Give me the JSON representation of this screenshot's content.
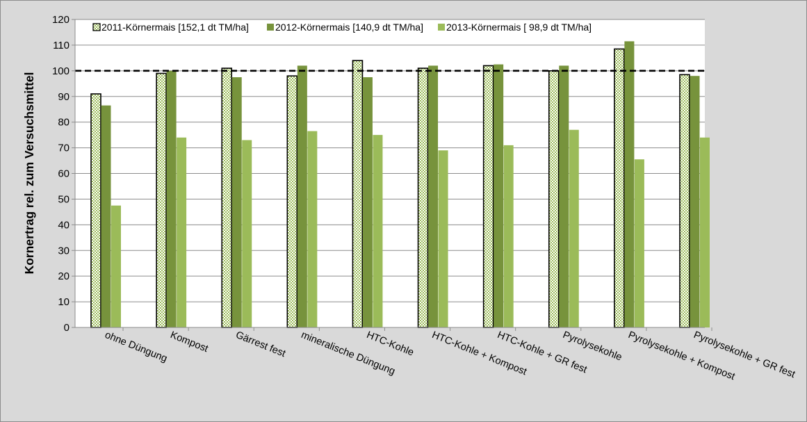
{
  "chart_data": {
    "type": "bar",
    "title": "",
    "xlabel": "",
    "ylabel": "Kornertrag rel. zum Versuchsmittel",
    "ylim": [
      0,
      120
    ],
    "ytick_step": 10,
    "ytick_labels": [
      "0",
      "10",
      "20",
      "30",
      "40",
      "50",
      "60",
      "70",
      "80",
      "90",
      "100",
      "110",
      "120"
    ],
    "grid": true,
    "legend_position": "top",
    "reference_line": {
      "value": 100,
      "style": "dashed",
      "color": "#000000"
    },
    "categories": [
      "ohne Düngung",
      "Kompost",
      "Gärrest fest",
      "mineralische Düngung",
      "HTC-Kohle",
      "HTC-Kohle + Kompost",
      "HTC-Kohle + GR fest",
      "Pyrolysekohle",
      "Pyrolysekohle + Kompost",
      "Pyrolysekohle + GR fest"
    ],
    "series": [
      {
        "name": "2011-Körnermais [152,1 dt TM/ha]",
        "color": "#d8e4bc",
        "pattern": "checker",
        "values": [
          91,
          99,
          101,
          98,
          104,
          101,
          102,
          100,
          108.5,
          98.5
        ]
      },
      {
        "name": "2012-Körnermais [140,9 dt TM/ha]",
        "color": "#77933c",
        "pattern": "solid",
        "values": [
          86.5,
          100,
          97.5,
          102,
          97.5,
          102,
          102.5,
          102,
          111.5,
          98
        ]
      },
      {
        "name": "2013-Körnermais [ 98,9 dt TM/ha]",
        "color": "#9bbb59",
        "pattern": "solid",
        "values": [
          47.5,
          74,
          73,
          76.5,
          75,
          69,
          71,
          77,
          65.5,
          74
        ]
      }
    ]
  }
}
